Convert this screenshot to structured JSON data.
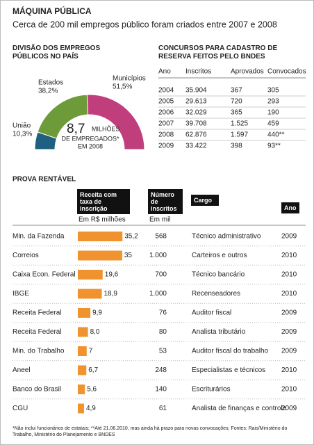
{
  "header": {
    "title": "MÁQUINA PÚBLICA",
    "subtitle": "Cerca de 200 mil empregos público foram criados entre 2007 e 2008"
  },
  "chart_data": [
    {
      "type": "pie",
      "title": "DIVISÃO DOS EMPREGOS PÚBLICOS NO PAÍS",
      "categories": [
        "União",
        "Estados",
        "Municípios"
      ],
      "values": [
        10.3,
        38.2,
        51.5
      ],
      "value_labels": [
        "10,3%",
        "38,2%",
        "51,5%"
      ],
      "colors": [
        "#1f5f7f",
        "#6e9b3a",
        "#c13e7d"
      ],
      "annotations": [
        "8,7",
        "MILHÕES",
        "DE EMPREGADOS*",
        "EM 2008"
      ]
    },
    {
      "type": "bar",
      "title": "PROVA RENTÁVEL",
      "header": "Receita com taxa de inscrição",
      "unit": "Em R$ milhões",
      "categories": [
        "Min. da Fazenda",
        "Correios",
        "Caixa Econ. Federal",
        "IBGE",
        "Receita Federal",
        "Receita Federal",
        "Min. do Trabalho",
        "Aneel",
        "Banco do Brasil",
        "CGU"
      ],
      "values": [
        35.2,
        35,
        19.6,
        18.9,
        9.9,
        8.0,
        7,
        6.7,
        5.6,
        4.9
      ],
      "value_labels": [
        "35,2",
        "35",
        "19,6",
        "18,9",
        "9,9",
        "8,0",
        "7",
        "6,7",
        "5,6",
        "4,9"
      ],
      "color": "#f0922e",
      "xlim": [
        0,
        40
      ]
    }
  ],
  "prova": {
    "inscritos": {
      "header": "Número de inscritos",
      "unit": "Em mil",
      "values": [
        "568",
        "1.000",
        "700",
        "1.000",
        "76",
        "80",
        "53",
        "248",
        "140",
        "61"
      ]
    },
    "cargo": {
      "header": "Cargo",
      "values": [
        "Técnico administrativo",
        "Carteiros e outros",
        "Técnico bancário",
        "Recenseadores",
        "Auditor fiscal",
        "Analista tributário",
        "Auditor fiscal do trabalho",
        "Especialistas e técnicos",
        "Escriturários",
        "Analista de finanças e controle"
      ]
    },
    "ano": {
      "header": "Ano",
      "values": [
        "2009",
        "2010",
        "2010",
        "2010",
        "2009",
        "2009",
        "2009",
        "2010",
        "2010",
        "2009"
      ]
    }
  },
  "bndes": {
    "title": "CONCURSOS PARA CADASTRO DE RESERVA FEITOS PELO BNDES",
    "columns": [
      "Ano",
      "Inscritos",
      "Aprovados",
      "Convocados"
    ],
    "rows": [
      [
        "2004",
        "35.904",
        "367",
        "305"
      ],
      [
        "2005",
        "29.613",
        "720",
        "293"
      ],
      [
        "2006",
        "32.029",
        "365",
        "190"
      ],
      [
        "2007",
        "39.708",
        "1.525",
        "459"
      ],
      [
        "2008",
        "62.876",
        "1.597",
        "440**"
      ],
      [
        "2009",
        "33.422",
        "398",
        "93**"
      ]
    ]
  },
  "footnote": "*Não inclui funcionários de estatais; **Até 21.06.2010, mas ainda há prazo para novas convocações; Fontes: Rais/Ministério do Trabalho, Ministério do Planejamento e BNDES"
}
